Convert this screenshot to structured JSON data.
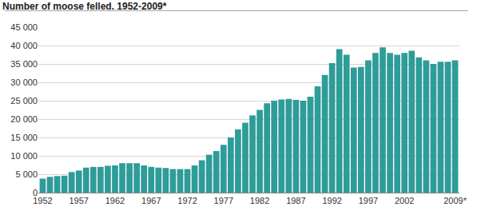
{
  "chart_data": {
    "type": "bar",
    "title": "Number of moose felled. 1952-2009*",
    "categories": [
      "1952",
      null,
      null,
      null,
      null,
      "1957",
      null,
      null,
      null,
      null,
      "1962",
      null,
      null,
      null,
      null,
      "1967",
      null,
      null,
      null,
      null,
      "1972",
      null,
      null,
      null,
      null,
      "1977",
      null,
      null,
      null,
      null,
      "1982",
      null,
      null,
      null,
      null,
      "1987",
      null,
      null,
      null,
      null,
      "1992",
      null,
      null,
      null,
      null,
      "1997",
      null,
      null,
      null,
      null,
      "2002",
      null,
      null,
      null,
      null,
      null,
      null,
      "2009*"
    ],
    "values": [
      3800,
      4300,
      4500,
      4600,
      5600,
      6000,
      6800,
      7000,
      7000,
      7300,
      7400,
      8000,
      8000,
      8000,
      7400,
      7000,
      6800,
      6700,
      6400,
      6400,
      6400,
      7400,
      8800,
      10300,
      11300,
      13000,
      15000,
      17200,
      19000,
      21000,
      22500,
      24300,
      25000,
      25300,
      25500,
      25200,
      25000,
      26100,
      28900,
      32000,
      35200,
      39000,
      37500,
      34000,
      34200,
      36000,
      38000,
      39500,
      38000,
      37500,
      38000,
      38600,
      36800,
      36000,
      35000,
      35600,
      35600,
      36000
    ],
    "color": "#2e9c98",
    "ylim": [
      0,
      45000
    ],
    "yticks": [
      0,
      {
        "value": 5000,
        "label": "5 000"
      },
      {
        "value": 10000,
        "label": "10 000"
      },
      {
        "value": 15000,
        "label": "15 000"
      },
      {
        "value": 20000,
        "label": "20 000"
      },
      {
        "value": 25000,
        "label": "25 000"
      },
      {
        "value": 30000,
        "label": "30 000"
      },
      {
        "value": 35000,
        "label": "35 000"
      },
      {
        "value": 40000,
        "label": "40 000"
      },
      {
        "value": 45000,
        "label": "45 000"
      }
    ],
    "grid": true
  }
}
